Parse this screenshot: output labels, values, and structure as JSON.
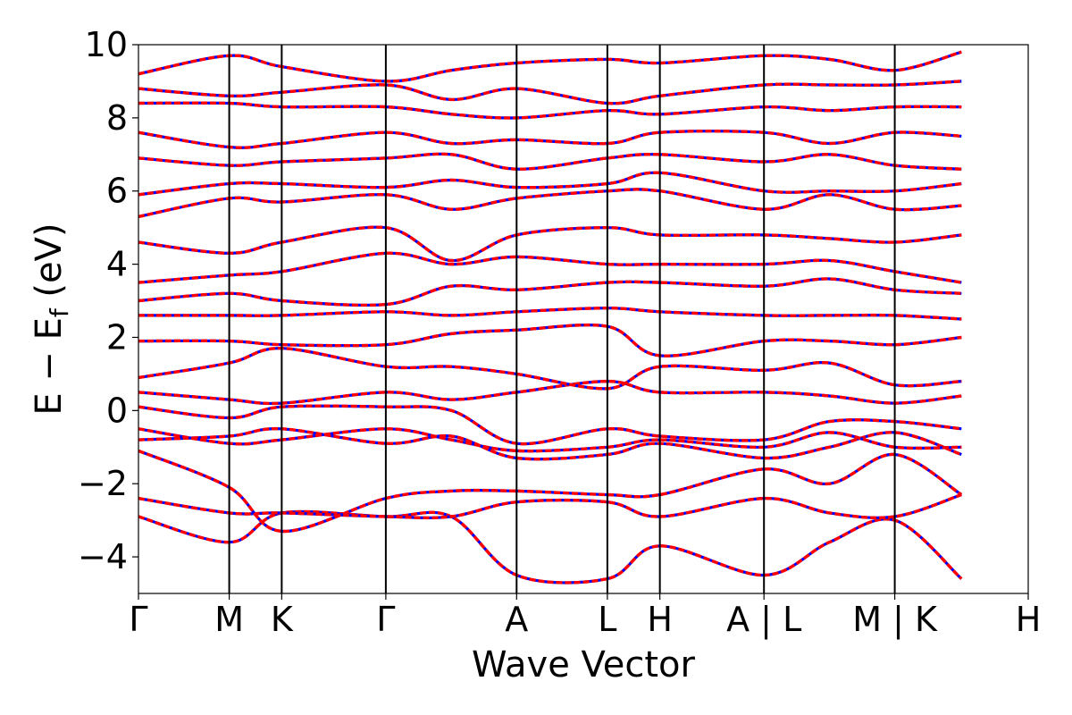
{
  "chart_data": {
    "type": "line",
    "title": "",
    "xlabel": "Wave Vector",
    "ylabel": "E − E_f (eV)",
    "ylabel_parts": {
      "main": "E − E",
      "sub": "f",
      "unit": " (eV)"
    },
    "ylim": [
      -5,
      10
    ],
    "yticks": [
      "10",
      "8",
      "6",
      "4",
      "2",
      "0",
      "−2",
      "−4"
    ],
    "ytick_values": [
      10,
      8,
      6,
      4,
      2,
      0,
      -2,
      -4
    ],
    "grid": false,
    "legend": "none",
    "colors": {
      "band": "#ff0000",
      "band_dash": "#0000ff",
      "axis": "#000000",
      "divider": "#000000"
    },
    "kpath_ticks": [
      {
        "label": "Γ",
        "k": 0.0
      },
      {
        "label": "M",
        "k": 0.102
      },
      {
        "label": "K",
        "k": 0.161
      },
      {
        "label": "Γ",
        "k": 0.278
      },
      {
        "label": "A",
        "k": 0.425
      },
      {
        "label": "L",
        "k": 0.527
      },
      {
        "label": "H",
        "k": 0.586
      },
      {
        "label": "A | L",
        "k": 0.703
      },
      {
        "label": "M | K",
        "k": 0.85
      },
      {
        "label": "H",
        "k": 1.0
      }
    ],
    "series": [
      {
        "values": [
          -2.9,
          -3.6,
          -2.8,
          -2.9,
          -2.9,
          -4.5,
          -4.6,
          -3.7,
          -4.5,
          -3.6,
          -3.0,
          -4.6
        ]
      },
      {
        "values": [
          -2.4,
          -2.8,
          -2.8,
          -2.9,
          -2.9,
          -2.5,
          -2.5,
          -2.9,
          -2.4,
          -2.8,
          -2.9,
          -2.3
        ]
      },
      {
        "values": [
          -1.1,
          -2.1,
          -3.3,
          -2.4,
          -2.2,
          -2.2,
          -2.3,
          -2.3,
          -1.6,
          -2.0,
          -1.2,
          -2.3
        ]
      },
      {
        "values": [
          -0.8,
          -0.7,
          -0.5,
          -0.9,
          -0.7,
          -1.3,
          -1.2,
          -0.9,
          -1.3,
          -1.0,
          -0.6,
          -1.2
        ]
      },
      {
        "values": [
          -0.5,
          -0.9,
          -0.8,
          -0.5,
          -0.8,
          -1.1,
          -1.0,
          -0.8,
          -1.0,
          -0.6,
          -1.0,
          -1.0
        ]
      },
      {
        "values": [
          0.1,
          -0.2,
          0.1,
          0.1,
          0.0,
          -0.9,
          -0.5,
          -0.7,
          -0.8,
          -0.3,
          -0.3,
          -0.5
        ]
      },
      {
        "values": [
          0.5,
          0.3,
          0.2,
          0.5,
          0.3,
          0.5,
          0.8,
          0.5,
          0.5,
          0.4,
          0.2,
          0.4
        ]
      },
      {
        "values": [
          0.9,
          1.3,
          1.7,
          1.2,
          1.2,
          1.0,
          0.6,
          1.2,
          1.1,
          1.3,
          0.7,
          0.8
        ]
      },
      {
        "values": [
          1.9,
          1.9,
          1.8,
          1.8,
          2.1,
          2.2,
          2.3,
          1.5,
          1.9,
          1.9,
          1.8,
          2.0
        ]
      },
      {
        "values": [
          2.6,
          2.6,
          2.6,
          2.7,
          2.6,
          2.7,
          2.8,
          2.7,
          2.6,
          2.6,
          2.6,
          2.5
        ]
      },
      {
        "values": [
          3.0,
          3.2,
          3.0,
          2.9,
          3.4,
          3.3,
          3.5,
          3.5,
          3.4,
          3.6,
          3.3,
          3.2
        ]
      },
      {
        "values": [
          3.5,
          3.7,
          3.8,
          4.3,
          4.0,
          4.2,
          4.0,
          4.0,
          4.0,
          4.1,
          3.8,
          3.5
        ]
      },
      {
        "values": [
          4.6,
          4.3,
          4.6,
          5.0,
          4.1,
          4.8,
          5.0,
          4.8,
          4.8,
          4.7,
          4.6,
          4.8
        ]
      },
      {
        "values": [
          5.3,
          5.8,
          5.7,
          5.9,
          5.5,
          5.8,
          6.0,
          6.0,
          5.5,
          5.9,
          5.5,
          5.6
        ]
      },
      {
        "values": [
          5.9,
          6.2,
          6.2,
          6.1,
          6.3,
          6.1,
          6.2,
          6.5,
          6.0,
          6.0,
          6.0,
          6.2
        ]
      },
      {
        "values": [
          6.9,
          6.7,
          6.8,
          6.9,
          7.0,
          6.6,
          6.9,
          7.0,
          6.8,
          7.0,
          6.7,
          6.6
        ]
      },
      {
        "values": [
          7.6,
          7.2,
          7.3,
          7.6,
          7.3,
          7.4,
          7.3,
          7.6,
          7.6,
          7.3,
          7.6,
          7.5
        ]
      },
      {
        "values": [
          8.4,
          8.4,
          8.3,
          8.3,
          8.1,
          8.0,
          8.2,
          8.1,
          8.3,
          8.2,
          8.3,
          8.3
        ]
      },
      {
        "values": [
          8.8,
          8.6,
          8.7,
          8.9,
          8.5,
          8.8,
          8.4,
          8.6,
          8.9,
          8.9,
          8.9,
          9.0
        ]
      },
      {
        "values": [
          9.2,
          9.7,
          9.4,
          9.0,
          9.3,
          9.5,
          9.6,
          9.5,
          9.7,
          9.6,
          9.3,
          9.8
        ]
      }
    ]
  }
}
